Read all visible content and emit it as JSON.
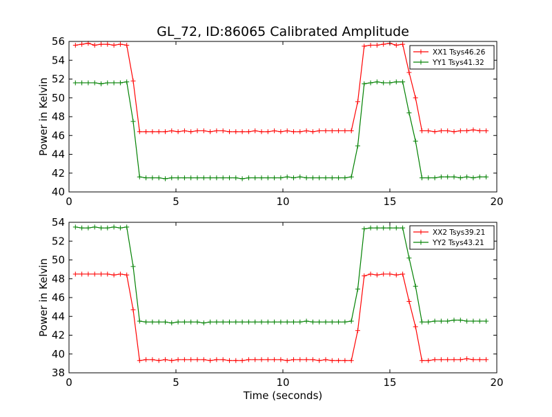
{
  "figure": {
    "title": "GL_72, ID:86065 Calibrated Amplitude"
  },
  "chart_data": [
    {
      "type": "line",
      "xlabel": "",
      "ylabel": "Power in Kelvin",
      "xlim": [
        0,
        20
      ],
      "ylim": [
        40,
        56
      ],
      "xticks": [
        "0",
        "5",
        "10",
        "15",
        "20"
      ],
      "yticks": [
        "40",
        "42",
        "44",
        "46",
        "48",
        "50",
        "52",
        "54",
        "56"
      ],
      "grid": false,
      "legend_position": "top-right",
      "x": [
        0.3,
        0.6,
        0.9,
        1.2,
        1.5,
        1.8,
        2.1,
        2.4,
        2.7,
        3.0,
        3.3,
        3.6,
        3.9,
        4.2,
        4.5,
        4.8,
        5.1,
        5.4,
        5.7,
        6.0,
        6.3,
        6.6,
        6.9,
        7.2,
        7.5,
        7.8,
        8.1,
        8.4,
        8.7,
        9.0,
        9.3,
        9.6,
        9.9,
        10.2,
        10.5,
        10.8,
        11.1,
        11.4,
        11.7,
        12.0,
        12.3,
        12.6,
        12.9,
        13.2,
        13.5,
        13.8,
        14.1,
        14.4,
        14.7,
        15.0,
        15.3,
        15.6,
        15.9,
        16.2,
        16.5,
        16.8,
        17.1,
        17.4,
        17.7,
        18.0,
        18.3,
        18.6,
        18.9,
        19.2,
        19.5
      ],
      "series": [
        {
          "name": "XX1 Tsys46.26",
          "color": "#ff0000",
          "values": [
            55.6,
            55.7,
            55.8,
            55.6,
            55.7,
            55.7,
            55.6,
            55.7,
            55.6,
            51.8,
            46.4,
            46.4,
            46.4,
            46.4,
            46.4,
            46.5,
            46.4,
            46.5,
            46.4,
            46.5,
            46.5,
            46.4,
            46.5,
            46.5,
            46.4,
            46.4,
            46.4,
            46.4,
            46.5,
            46.4,
            46.4,
            46.5,
            46.4,
            46.5,
            46.4,
            46.4,
            46.5,
            46.4,
            46.5,
            46.5,
            46.5,
            46.5,
            46.5,
            46.5,
            49.6,
            55.5,
            55.6,
            55.6,
            55.7,
            55.8,
            55.6,
            55.7,
            52.7,
            50.0,
            46.5,
            46.5,
            46.4,
            46.5,
            46.5,
            46.4,
            46.5,
            46.5,
            46.6,
            46.5,
            46.5
          ]
        },
        {
          "name": "YY1 Tsys41.32",
          "color": "#008000",
          "values": [
            51.6,
            51.6,
            51.6,
            51.6,
            51.5,
            51.6,
            51.6,
            51.6,
            51.7,
            47.5,
            41.6,
            41.5,
            41.5,
            41.5,
            41.4,
            41.5,
            41.5,
            41.5,
            41.5,
            41.5,
            41.5,
            41.5,
            41.5,
            41.5,
            41.5,
            41.5,
            41.4,
            41.5,
            41.5,
            41.5,
            41.5,
            41.5,
            41.5,
            41.6,
            41.5,
            41.6,
            41.5,
            41.5,
            41.5,
            41.5,
            41.5,
            41.5,
            41.5,
            41.6,
            44.9,
            51.5,
            51.6,
            51.7,
            51.6,
            51.6,
            51.7,
            51.7,
            48.4,
            45.4,
            41.5,
            41.5,
            41.5,
            41.6,
            41.6,
            41.6,
            41.5,
            41.6,
            41.5,
            41.6,
            41.6
          ]
        }
      ]
    },
    {
      "type": "line",
      "xlabel": "Time (seconds)",
      "ylabel": "Power in Kelvin",
      "xlim": [
        0,
        20
      ],
      "ylim": [
        38,
        54
      ],
      "xticks": [
        "0",
        "5",
        "10",
        "15",
        "20"
      ],
      "yticks": [
        "38",
        "40",
        "42",
        "44",
        "46",
        "48",
        "50",
        "52",
        "54"
      ],
      "grid": false,
      "legend_position": "top-right",
      "x": [
        0.3,
        0.6,
        0.9,
        1.2,
        1.5,
        1.8,
        2.1,
        2.4,
        2.7,
        3.0,
        3.3,
        3.6,
        3.9,
        4.2,
        4.5,
        4.8,
        5.1,
        5.4,
        5.7,
        6.0,
        6.3,
        6.6,
        6.9,
        7.2,
        7.5,
        7.8,
        8.1,
        8.4,
        8.7,
        9.0,
        9.3,
        9.6,
        9.9,
        10.2,
        10.5,
        10.8,
        11.1,
        11.4,
        11.7,
        12.0,
        12.3,
        12.6,
        12.9,
        13.2,
        13.5,
        13.8,
        14.1,
        14.4,
        14.7,
        15.0,
        15.3,
        15.6,
        15.9,
        16.2,
        16.5,
        16.8,
        17.1,
        17.4,
        17.7,
        18.0,
        18.3,
        18.6,
        18.9,
        19.2,
        19.5
      ],
      "series": [
        {
          "name": "XX2 Tsys39.21",
          "color": "#ff0000",
          "values": [
            48.5,
            48.5,
            48.5,
            48.5,
            48.5,
            48.5,
            48.4,
            48.5,
            48.4,
            44.7,
            39.3,
            39.4,
            39.4,
            39.3,
            39.4,
            39.3,
            39.4,
            39.4,
            39.4,
            39.4,
            39.4,
            39.3,
            39.4,
            39.4,
            39.3,
            39.3,
            39.3,
            39.4,
            39.4,
            39.4,
            39.4,
            39.4,
            39.4,
            39.3,
            39.4,
            39.4,
            39.4,
            39.4,
            39.3,
            39.4,
            39.3,
            39.3,
            39.3,
            39.3,
            42.5,
            48.3,
            48.5,
            48.4,
            48.5,
            48.5,
            48.4,
            48.5,
            45.6,
            42.9,
            39.3,
            39.3,
            39.4,
            39.4,
            39.4,
            39.4,
            39.4,
            39.5,
            39.4,
            39.4,
            39.4
          ]
        },
        {
          "name": "YY2 Tsys43.21",
          "color": "#008000",
          "values": [
            53.5,
            53.4,
            53.4,
            53.5,
            53.4,
            53.4,
            53.5,
            53.4,
            53.5,
            49.3,
            43.5,
            43.4,
            43.4,
            43.4,
            43.4,
            43.3,
            43.4,
            43.4,
            43.4,
            43.4,
            43.3,
            43.4,
            43.4,
            43.4,
            43.4,
            43.4,
            43.4,
            43.4,
            43.4,
            43.4,
            43.4,
            43.4,
            43.4,
            43.4,
            43.4,
            43.4,
            43.5,
            43.4,
            43.4,
            43.4,
            43.4,
            43.4,
            43.4,
            43.5,
            46.9,
            53.3,
            53.4,
            53.4,
            53.4,
            53.4,
            53.4,
            53.4,
            50.2,
            47.2,
            43.4,
            43.4,
            43.5,
            43.5,
            43.5,
            43.6,
            43.6,
            43.5,
            43.5,
            43.5,
            43.5
          ]
        }
      ]
    }
  ]
}
